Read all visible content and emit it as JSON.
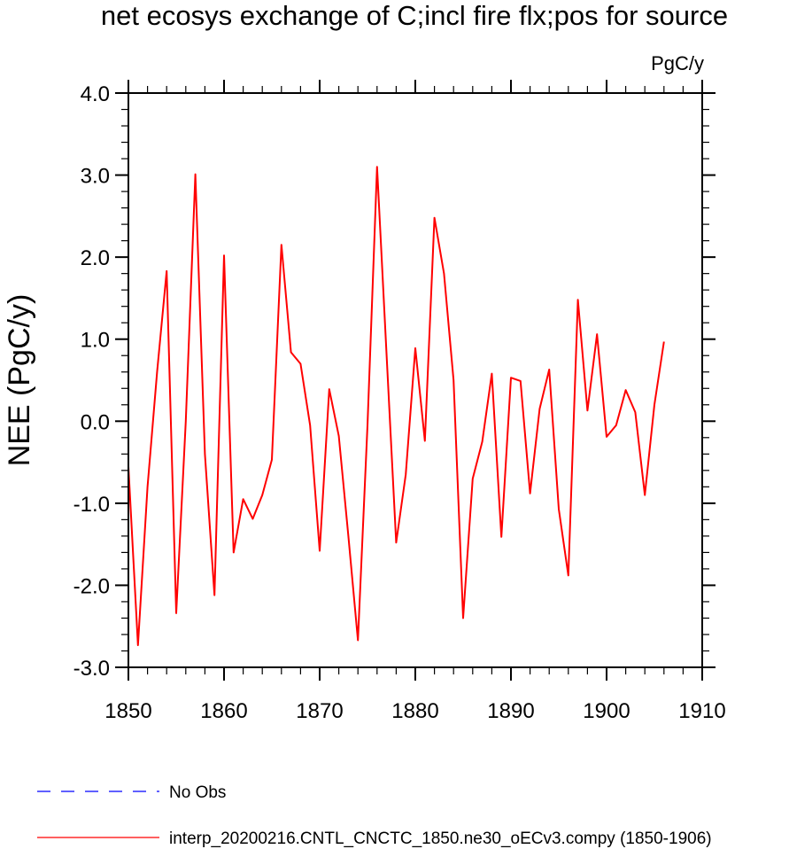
{
  "chart_data": {
    "type": "line",
    "title": "net ecosys exchange of C;incl fire flx;pos for source",
    "units_label": "PgC/y",
    "ylabel": "NEE  (PgC/y)",
    "xlabel": "",
    "xlim": [
      1850,
      1910
    ],
    "ylim": [
      -3.0,
      4.0
    ],
    "x_ticks": [
      1850,
      1860,
      1870,
      1880,
      1890,
      1900,
      1910
    ],
    "x_tick_labels": [
      "1850",
      "1860",
      "1870",
      "1880",
      "1890",
      "1900",
      "1910"
    ],
    "y_ticks": [
      -3.0,
      -2.0,
      -1.0,
      0.0,
      1.0,
      2.0,
      3.0,
      4.0
    ],
    "y_tick_labels": [
      "-3.0",
      "-2.0",
      "-1.0",
      "0.0",
      "1.0",
      "2.0",
      "3.0",
      "4.0"
    ],
    "grid": false,
    "legend_position": "bottom",
    "series": [
      {
        "name": "interp_20200216.CNTL_CNCTC_1850.ne30_oECv3.compy (1850-1906)",
        "color": "#ff0000",
        "line_style": "solid",
        "x": [
          1850,
          1851,
          1852,
          1853,
          1854,
          1855,
          1856,
          1857,
          1858,
          1859,
          1860,
          1861,
          1862,
          1863,
          1864,
          1865,
          1866,
          1867,
          1868,
          1869,
          1870,
          1871,
          1872,
          1873,
          1874,
          1875,
          1876,
          1877,
          1878,
          1879,
          1880,
          1881,
          1882,
          1883,
          1884,
          1885,
          1886,
          1887,
          1888,
          1889,
          1890,
          1891,
          1892,
          1893,
          1894,
          1895,
          1896,
          1897,
          1898,
          1899,
          1900,
          1901,
          1902,
          1903,
          1904,
          1905,
          1906
        ],
        "values": [
          -0.55,
          -2.73,
          -0.8,
          0.6,
          1.83,
          -2.34,
          0.0,
          3.01,
          -0.4,
          -2.12,
          2.02,
          -1.6,
          -0.95,
          -1.19,
          -0.9,
          -0.47,
          2.15,
          0.84,
          0.7,
          -0.05,
          -1.58,
          0.39,
          -0.18,
          -1.4,
          -2.67,
          -0.05,
          3.1,
          0.8,
          -1.48,
          -0.65,
          0.89,
          -0.24,
          2.48,
          1.8,
          0.5,
          -2.4,
          -0.7,
          -0.25,
          0.58,
          -1.41,
          0.53,
          0.49,
          -0.88,
          0.15,
          0.63,
          -1.07,
          -1.88,
          1.48,
          0.13,
          1.06,
          -0.19,
          -0.05,
          0.38,
          0.11,
          -0.9,
          0.2,
          0.97
        ]
      },
      {
        "name": "No Obs",
        "color": "#0000ff",
        "line_style": "dashed",
        "x": [],
        "values": []
      }
    ]
  }
}
